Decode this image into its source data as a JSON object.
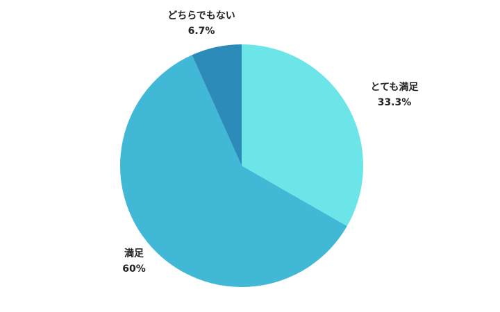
{
  "chart_data": {
    "type": "pie",
    "title": "",
    "categories": [
      "とても満足",
      "満足",
      "どちらでもない"
    ],
    "values": [
      33.3,
      60,
      6.7
    ],
    "value_labels": [
      "33.3%",
      "60%",
      "6.7%"
    ],
    "colors": [
      "#6ce5e8",
      "#41b8d5",
      "#2d8bba"
    ],
    "start": "top",
    "direction": "clockwise",
    "legend": "none"
  }
}
